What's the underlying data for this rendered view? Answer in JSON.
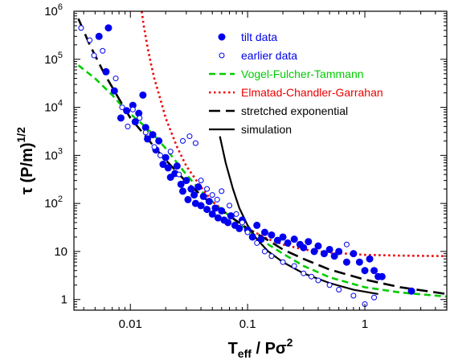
{
  "chart_data": {
    "type": "scatter",
    "xaxis": {
      "label_main": "T",
      "label_sub": "eff",
      "label_rest": " / Pσ",
      "label_sup": "2",
      "scale": "log",
      "range": [
        0.0033,
        5.0
      ],
      "ticks": [
        {
          "value": 0.01,
          "label": "0.01"
        },
        {
          "value": 0.1,
          "label": "0.1"
        },
        {
          "value": 1,
          "label": "1"
        }
      ]
    },
    "yaxis": {
      "label_main": "τ (P/m)",
      "label_sup": "1/2",
      "scale": "log",
      "range": [
        0.6,
        1000000
      ],
      "ticks": [
        {
          "value": 1,
          "label": "1",
          "sup": ""
        },
        {
          "value": 10,
          "label": "10",
          "sup": ""
        },
        {
          "value": 100,
          "label": "10",
          "sup": "2"
        },
        {
          "value": 1000,
          "label": "10",
          "sup": "3"
        },
        {
          "value": 10000,
          "label": "10",
          "sup": "4"
        },
        {
          "value": 100000,
          "label": "10",
          "sup": "5"
        },
        {
          "value": 1000000,
          "label": "10",
          "sup": "6"
        }
      ]
    },
    "legend": {
      "placement": "top-right",
      "entries": [
        {
          "key": "tilt",
          "label": "tilt data",
          "color": "#0000ee",
          "style": "filled-circle"
        },
        {
          "key": "earlier",
          "label": "earlier data",
          "color": "#0000ee",
          "style": "open-circle"
        },
        {
          "key": "vft",
          "label": "Vogel-Fulcher-Tammann",
          "color": "#00cc00",
          "style": "dash"
        },
        {
          "key": "ecg",
          "label": "Elmatad-Chandler-Garrahan",
          "color": "#ee0000",
          "style": "dot"
        },
        {
          "key": "se",
          "label": "stretched exponential",
          "color": "#000000",
          "style": "long-dash"
        },
        {
          "key": "sim",
          "label": "simulation",
          "color": "#000000",
          "style": "solid"
        }
      ]
    },
    "series": [
      {
        "name": "tilt data",
        "type": "scatter",
        "marker": "filled-circle",
        "color": "#0000ee",
        "points": [
          [
            0.0054,
            300000
          ],
          [
            0.0065,
            450000
          ],
          [
            0.0062,
            55000
          ],
          [
            0.0073,
            22000
          ],
          [
            0.0083,
            6000
          ],
          [
            0.0093,
            8500
          ],
          [
            0.0105,
            11000
          ],
          [
            0.011,
            5000
          ],
          [
            0.0118,
            7500
          ],
          [
            0.0128,
            18000
          ],
          [
            0.0135,
            3800
          ],
          [
            0.014,
            2200
          ],
          [
            0.0155,
            2700
          ],
          [
            0.0165,
            1300
          ],
          [
            0.0175,
            2000
          ],
          [
            0.019,
            650
          ],
          [
            0.02,
            900
          ],
          [
            0.021,
            550
          ],
          [
            0.022,
            350
          ],
          [
            0.024,
            420
          ],
          [
            0.025,
            600
          ],
          [
            0.027,
            250
          ],
          [
            0.028,
            180
          ],
          [
            0.03,
            300
          ],
          [
            0.031,
            120
          ],
          [
            0.033,
            200
          ],
          [
            0.035,
            150
          ],
          [
            0.036,
            100
          ],
          [
            0.038,
            220
          ],
          [
            0.04,
            90
          ],
          [
            0.042,
            140
          ],
          [
            0.045,
            75
          ],
          [
            0.047,
            110
          ],
          [
            0.05,
            60
          ],
          [
            0.053,
            80
          ],
          [
            0.056,
            50
          ],
          [
            0.06,
            70
          ],
          [
            0.063,
            45
          ],
          [
            0.068,
            40
          ],
          [
            0.072,
            55
          ],
          [
            0.078,
            35
          ],
          [
            0.085,
            30
          ],
          [
            0.09,
            45
          ],
          [
            0.1,
            28
          ],
          [
            0.11,
            20
          ],
          [
            0.12,
            35
          ],
          [
            0.13,
            18
          ],
          [
            0.14,
            25
          ],
          [
            0.16,
            22
          ],
          [
            0.18,
            17
          ],
          [
            0.2,
            20
          ],
          [
            0.22,
            15
          ],
          [
            0.25,
            18
          ],
          [
            0.28,
            14
          ],
          [
            0.3,
            12
          ],
          [
            0.33,
            16
          ],
          [
            0.37,
            10
          ],
          [
            0.4,
            13
          ],
          [
            0.45,
            9
          ],
          [
            0.5,
            11
          ],
          [
            0.55,
            8
          ],
          [
            0.6,
            10
          ],
          [
            0.7,
            6
          ],
          [
            0.8,
            9
          ],
          [
            0.9,
            6
          ],
          [
            1.0,
            4
          ],
          [
            1.1,
            7
          ],
          [
            1.2,
            4
          ],
          [
            1.3,
            3
          ],
          [
            1.4,
            3
          ],
          [
            2.5,
            1.5
          ]
        ]
      },
      {
        "name": "earlier data",
        "type": "scatter",
        "marker": "open-circle",
        "color": "#0000ee",
        "points": [
          [
            0.0038,
            450000
          ],
          [
            0.0045,
            250000
          ],
          [
            0.0049,
            120000
          ],
          [
            0.0058,
            150000
          ],
          [
            0.0075,
            40000
          ],
          [
            0.0085,
            10000
          ],
          [
            0.0095,
            4000
          ],
          [
            0.0105,
            9000
          ],
          [
            0.012,
            6000
          ],
          [
            0.0135,
            3000
          ],
          [
            0.016,
            1500
          ],
          [
            0.018,
            1000
          ],
          [
            0.022,
            1200
          ],
          [
            0.026,
            400
          ],
          [
            0.028,
            2000
          ],
          [
            0.032,
            2500
          ],
          [
            0.036,
            1800
          ],
          [
            0.04,
            300
          ],
          [
            0.045,
            200
          ],
          [
            0.05,
            150
          ],
          [
            0.055,
            120
          ],
          [
            0.06,
            180
          ],
          [
            0.07,
            90
          ],
          [
            0.08,
            60
          ],
          [
            0.09,
            40
          ],
          [
            0.1,
            25
          ],
          [
            0.12,
            15
          ],
          [
            0.14,
            10
          ],
          [
            0.16,
            8
          ],
          [
            0.2,
            6
          ],
          [
            0.25,
            5
          ],
          [
            0.3,
            3.5
          ],
          [
            0.35,
            3
          ],
          [
            0.4,
            2.5
          ],
          [
            0.5,
            2
          ],
          [
            0.6,
            1.6
          ],
          [
            0.7,
            14
          ],
          [
            0.8,
            1.2
          ],
          [
            1.0,
            0.8
          ],
          [
            1.2,
            1.1
          ]
        ]
      }
    ],
    "curves": [
      {
        "name": "Vogel-Fulcher-Tammann",
        "color": "#00cc00",
        "style": "dash",
        "points": [
          [
            0.0036,
            75000
          ],
          [
            0.005,
            40000
          ],
          [
            0.007,
            18000
          ],
          [
            0.009,
            9000
          ],
          [
            0.011,
            6000
          ],
          [
            0.013,
            4200
          ],
          [
            0.015,
            3000
          ],
          [
            0.017,
            2200
          ],
          [
            0.02,
            1400
          ],
          [
            0.025,
            700
          ],
          [
            0.03,
            400
          ],
          [
            0.04,
            180
          ],
          [
            0.05,
            110
          ],
          [
            0.07,
            55
          ],
          [
            0.1,
            28
          ],
          [
            0.15,
            14
          ],
          [
            0.2,
            9
          ],
          [
            0.3,
            5
          ],
          [
            0.5,
            2.9
          ],
          [
            1,
            1.8
          ],
          [
            2,
            1.4
          ],
          [
            5,
            1.15
          ]
        ]
      },
      {
        "name": "Elmatad-Chandler-Garrahan",
        "color": "#ee0000",
        "style": "dot",
        "points": [
          [
            0.0125,
            1000000
          ],
          [
            0.013,
            500000
          ],
          [
            0.014,
            180000
          ],
          [
            0.015,
            80000
          ],
          [
            0.016,
            40000
          ],
          [
            0.018,
            15000
          ],
          [
            0.02,
            6000
          ],
          [
            0.025,
            1500
          ],
          [
            0.03,
            600
          ],
          [
            0.04,
            220
          ],
          [
            0.05,
            110
          ],
          [
            0.07,
            55
          ],
          [
            0.1,
            30
          ],
          [
            0.15,
            18
          ],
          [
            0.2,
            14
          ],
          [
            0.3,
            11
          ],
          [
            0.5,
            9.5
          ],
          [
            1,
            8.5
          ],
          [
            2,
            8.2
          ],
          [
            5,
            8
          ]
        ]
      },
      {
        "name": "stretched exponential",
        "color": "#000000",
        "style": "long-dash",
        "points": [
          [
            0.0036,
            700000
          ],
          [
            0.0045,
            200000
          ],
          [
            0.006,
            50000
          ],
          [
            0.008,
            15000
          ],
          [
            0.01,
            6000
          ],
          [
            0.013,
            2800
          ],
          [
            0.016,
            1500
          ],
          [
            0.02,
            800
          ],
          [
            0.025,
            450
          ],
          [
            0.03,
            280
          ],
          [
            0.04,
            150
          ],
          [
            0.05,
            95
          ],
          [
            0.07,
            55
          ],
          [
            0.1,
            30
          ],
          [
            0.15,
            17
          ],
          [
            0.2,
            11
          ],
          [
            0.3,
            7
          ],
          [
            0.5,
            4.2
          ],
          [
            1,
            2.6
          ],
          [
            2,
            1.8
          ],
          [
            5,
            1.3
          ]
        ]
      },
      {
        "name": "simulation",
        "color": "#000000",
        "style": "solid",
        "points": [
          [
            0.058,
            2500
          ],
          [
            0.065,
            700
          ],
          [
            0.075,
            200
          ],
          [
            0.085,
            80
          ],
          [
            0.1,
            35
          ],
          [
            0.12,
            18
          ],
          [
            0.15,
            10
          ],
          [
            0.2,
            6
          ],
          [
            0.3,
            3.5
          ],
          [
            0.5,
            2.2
          ],
          [
            0.8,
            1.6
          ],
          [
            1.3,
            1.3
          ]
        ]
      }
    ]
  }
}
